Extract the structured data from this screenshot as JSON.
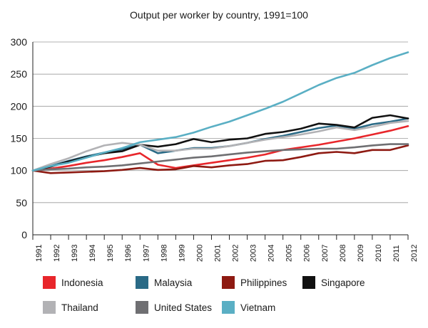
{
  "chart_data": {
    "type": "line",
    "title": "Output per worker by country, 1991=100",
    "xlabel": "",
    "ylabel": "",
    "x": [
      "1991",
      "1992",
      "1993",
      "1994",
      "1995",
      "1996",
      "1997",
      "1998",
      "1999",
      "2000",
      "2001",
      "2002",
      "2003",
      "2004",
      "2005",
      "2006",
      "2007",
      "2008",
      "2009",
      "2010",
      "2011",
      "2012"
    ],
    "ylim": [
      0,
      300
    ],
    "yticks": [
      0,
      50,
      100,
      150,
      200,
      250,
      300
    ],
    "grid": "horizontal",
    "legend_position": "bottom",
    "series": [
      {
        "name": "Indonesia",
        "color": "#e8262b",
        "values": [
          100,
          103,
          107,
          112,
          116,
          121,
          127,
          109,
          104,
          108,
          112,
          116,
          120,
          125,
          132,
          136,
          140,
          145,
          150,
          156,
          162,
          169
        ]
      },
      {
        "name": "Malaysia",
        "color": "#2a6a86",
        "values": [
          100,
          107,
          115,
          122,
          128,
          133,
          140,
          127,
          131,
          135,
          135,
          138,
          143,
          149,
          154,
          160,
          166,
          170,
          165,
          172,
          176,
          181
        ]
      },
      {
        "name": "Philippines",
        "color": "#8e1a12",
        "values": [
          100,
          96,
          97,
          98,
          99,
          101,
          104,
          101,
          102,
          107,
          105,
          108,
          110,
          115,
          116,
          121,
          127,
          129,
          127,
          132,
          132,
          139
        ]
      },
      {
        "name": "Singapore",
        "color": "#111111",
        "values": [
          100,
          106,
          114,
          121,
          127,
          130,
          140,
          137,
          141,
          149,
          144,
          148,
          150,
          157,
          160,
          165,
          173,
          171,
          167,
          182,
          186,
          181
        ]
      },
      {
        "name": "Thailand",
        "color": "#b2b2b5",
        "values": [
          100,
          110,
          119,
          130,
          139,
          143,
          140,
          131,
          131,
          134,
          134,
          138,
          143,
          148,
          152,
          156,
          161,
          167,
          163,
          168,
          174,
          177
        ]
      },
      {
        "name": "United States",
        "color": "#6f6f72",
        "values": [
          100,
          102,
          103,
          105,
          106,
          108,
          111,
          114,
          117,
          120,
          122,
          125,
          128,
          130,
          132,
          133,
          134,
          134,
          136,
          139,
          141,
          141
        ]
      },
      {
        "name": "Vietnam",
        "color": "#5aafc4",
        "values": [
          100,
          107,
          112,
          120,
          128,
          135,
          144,
          148,
          152,
          159,
          168,
          176,
          186,
          196,
          207,
          220,
          233,
          244,
          252,
          264,
          275,
          284
        ]
      }
    ]
  }
}
